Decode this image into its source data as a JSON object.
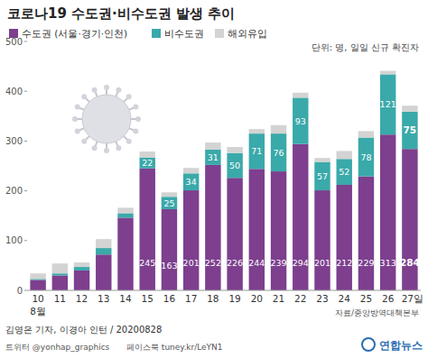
{
  "chart_data": {
    "type": "bar",
    "title": "코로나19 수도권·비수도권 발생 추이",
    "subtitle": "단위: 명, 일일 신규 확진자",
    "source": "자료/중앙방역대책본부",
    "credit": "김영은 기자, 이경아 인턴 / 20200828",
    "footer": [
      "트위터 @yonhap_graphics",
      "페이스북 tuney.kr/LeYN1"
    ],
    "logo": "연합뉴스",
    "annotations": [
      "8월"
    ],
    "categories": [
      "10",
      "11",
      "12",
      "13",
      "14",
      "15",
      "16",
      "17",
      "18",
      "19",
      "20",
      "21",
      "22",
      "23",
      "24",
      "25",
      "26",
      "27일"
    ],
    "stacked": true,
    "data_labels": true,
    "grid": false,
    "legend": "top",
    "ylim": [
      0,
      500
    ],
    "yticks": [
      0,
      100,
      200,
      300,
      400,
      500
    ],
    "series": [
      {
        "name": "수도권 (서울·경기·인천)",
        "color": "#7d3f8e",
        "values": [
          21,
          30,
          40,
          72,
          146,
          245,
          163,
          201,
          252,
          226,
          244,
          239,
          294,
          201,
          212,
          229,
          313,
          284
        ],
        "value_labels": [
          null,
          null,
          null,
          null,
          null,
          "245",
          "163",
          "201",
          "252",
          "226",
          "244",
          "239",
          "294",
          "201",
          "212",
          "229",
          "313",
          "284"
        ]
      },
      {
        "name": "비수도권",
        "color": "#3aa9aa",
        "values": [
          2,
          4,
          7,
          13,
          9,
          22,
          25,
          34,
          31,
          50,
          71,
          76,
          93,
          57,
          52,
          78,
          121,
          75
        ],
        "value_labels": [
          null,
          null,
          null,
          null,
          null,
          "22",
          "25",
          "34",
          "31",
          "50",
          "71",
          "76",
          "93",
          "57",
          "52",
          "78",
          "121",
          "75"
        ]
      },
      {
        "name": "해외유입",
        "color": "#d3d3d3",
        "values": [
          11,
          20,
          9,
          18,
          11,
          12,
          9,
          11,
          14,
          12,
          9,
          17,
          10,
          8,
          16,
          13,
          7,
          12
        ]
      }
    ]
  }
}
